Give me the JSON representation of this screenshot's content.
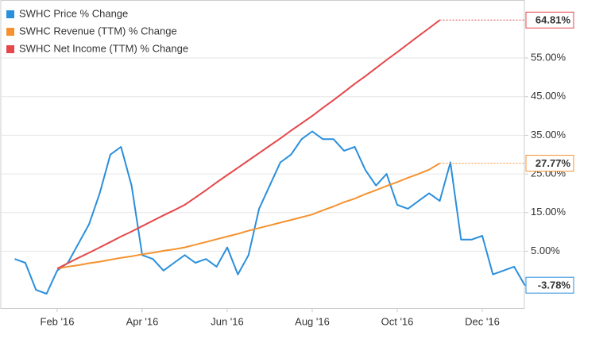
{
  "chart_data": {
    "type": "line",
    "legend": "top-left",
    "grid": true,
    "categories": [
      null,
      null,
      null,
      null,
      "Feb '16",
      null,
      null,
      null,
      null,
      null,
      null,
      null,
      "Apr '16",
      null,
      null,
      null,
      null,
      null,
      null,
      null,
      "Jun '16",
      null,
      null,
      null,
      null,
      null,
      null,
      null,
      "Aug '16",
      null,
      null,
      null,
      null,
      null,
      null,
      null,
      "Oct '16",
      null,
      null,
      null,
      null,
      null,
      null,
      null,
      "Dec '16",
      null,
      null,
      null,
      null
    ],
    "ylim": [
      -9.7,
      70
    ],
    "yticks": [
      {
        "value": 5,
        "label": "5.00%"
      },
      {
        "value": 15,
        "label": "15.00%"
      },
      {
        "value": 25,
        "label": "25.00%"
      },
      {
        "value": 35,
        "label": "35.00%"
      },
      {
        "value": 45,
        "label": "45.00%"
      },
      {
        "value": 55,
        "label": "55.00%"
      }
    ],
    "series": [
      {
        "name": "SWHC Price % Change",
        "color": "#2a8fdc",
        "end_label": "-3.78%",
        "values": [
          3,
          2,
          -5,
          -6,
          0,
          2,
          7,
          12,
          20,
          30,
          32,
          22,
          4,
          3,
          0,
          2,
          4,
          2,
          3,
          1,
          6,
          -1,
          4,
          16,
          22,
          28,
          30,
          34,
          36,
          34,
          34,
          31,
          32,
          26,
          22,
          25,
          17,
          16,
          18,
          20,
          18,
          28,
          8,
          8,
          9,
          -1,
          0,
          1,
          -3.78
        ]
      },
      {
        "name": "SWHC Revenue (TTM) % Change",
        "color": "#f5922f",
        "end_label": "27.77%",
        "values": [
          null,
          null,
          null,
          null,
          0.5,
          1.0,
          1.4,
          1.9,
          2.3,
          2.8,
          3.3,
          3.7,
          4.2,
          4.6,
          5.1,
          5.5,
          6.0,
          6.7,
          7.4,
          8.1,
          8.8,
          9.5,
          10.3,
          11.0,
          11.7,
          12.4,
          13.1,
          13.8,
          14.5,
          15.6,
          16.6,
          17.7,
          18.6,
          19.8,
          20.8,
          21.9,
          22.9,
          24.0,
          25.0,
          26.1,
          27.77,
          null,
          null,
          null,
          null,
          null,
          null,
          null,
          null
        ]
      },
      {
        "name": "SWHC Net Income (TTM) % Change",
        "color": "#e5474b",
        "end_label": "64.81%",
        "values": [
          null,
          null,
          null,
          null,
          0.5,
          1.9,
          3.3,
          4.6,
          6.0,
          7.4,
          8.8,
          10.1,
          11.5,
          12.9,
          14.3,
          15.6,
          17.0,
          18.9,
          20.8,
          22.8,
          24.7,
          26.6,
          28.5,
          30.4,
          32.3,
          34.2,
          36.2,
          38.1,
          40.0,
          42.1,
          44.1,
          46.2,
          48.3,
          50.3,
          52.4,
          54.5,
          56.5,
          58.6,
          60.7,
          62.7,
          64.81,
          null,
          null,
          null,
          null,
          null,
          null,
          null,
          null
        ]
      }
    ]
  }
}
